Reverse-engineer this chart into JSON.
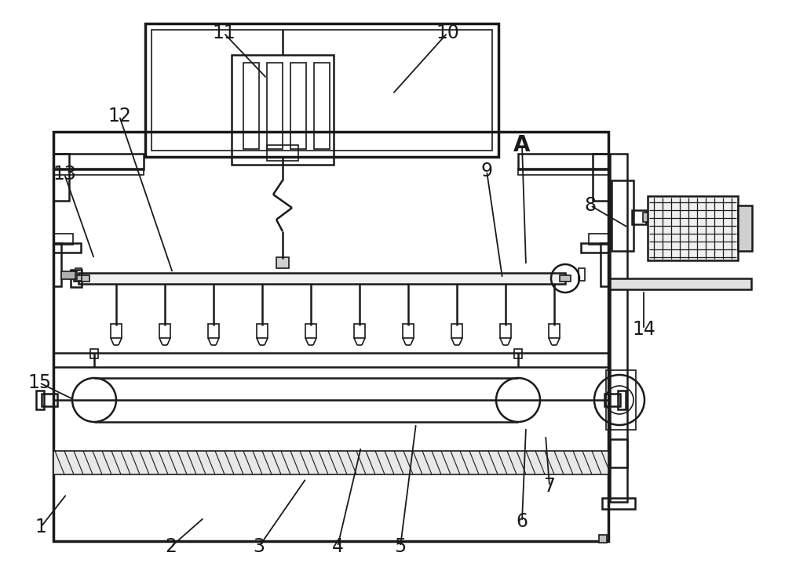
{
  "bg_color": "#ffffff",
  "line_color": "#1a1a1a",
  "lw_thin": 1.2,
  "lw_med": 1.8,
  "lw_thick": 2.5,
  "label_fontsize": 17,
  "label_A_fontsize": 20,
  "fig_width": 10.0,
  "fig_height": 7.23
}
